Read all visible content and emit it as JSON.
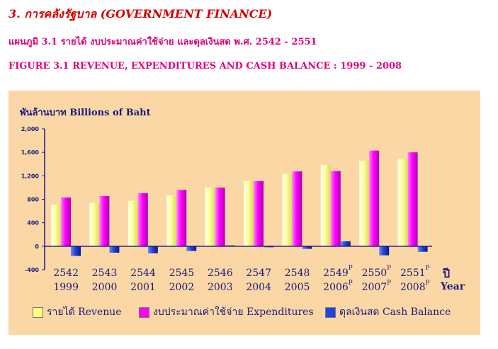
{
  "header": {
    "section_title": "3.  การคลังรัฐบาล  (GOVERNMENT FINANCE)",
    "figure_title_th": "แผนภูมิ  3.1  รายได้ งบประมาณค่าใช้จ่าย  และดุลเงินสด พ.ศ. 2542 - 2551",
    "figure_title_en": "FIGURE 3.1  REVENUE, EXPENDITURES AND CASH BALANCE :  1999 - 2008"
  },
  "chart_data": {
    "type": "bar",
    "unit_label": "พันล้านบาท  Billions of Baht",
    "categories_th": [
      "2542",
      "2543",
      "2544",
      "2545",
      "2546",
      "2547",
      "2548",
      "2549",
      "2550",
      "2551"
    ],
    "categories_en": [
      "1999",
      "2000",
      "2001",
      "2002",
      "2003",
      "2004",
      "2005",
      "2006",
      "2007",
      "2008"
    ],
    "preliminary_mark": "p",
    "preliminary_flags": [
      false,
      false,
      false,
      false,
      false,
      false,
      false,
      true,
      true,
      true
    ],
    "axis_title_th": "ปี",
    "axis_title_en": "Year",
    "ylim": [
      -400,
      2000
    ],
    "yticks": [
      -400,
      0,
      400,
      800,
      1200,
      1600,
      2000
    ],
    "ytick_labels": [
      "-400",
      "0",
      "400",
      "800",
      "1,200",
      "1,600",
      "2,000"
    ],
    "grid": false,
    "legend_position": "bottom",
    "series": [
      {
        "name": "รายได้  Revenue",
        "color": "#ffff80",
        "values": [
          710,
          740,
          775,
          870,
          1005,
          1110,
          1235,
          1385,
          1455,
          1495
        ]
      },
      {
        "name": "งบประมาณค่าใช้จ่าย  Expenditures",
        "color": "#ff00ff",
        "values": [
          830,
          855,
          905,
          960,
          1000,
          1110,
          1275,
          1280,
          1630,
          1600
        ]
      },
      {
        "name": "ดุลเงินสด  Cash Balance",
        "color": "#2244dd",
        "values": [
          -165,
          -110,
          -120,
          -80,
          15,
          0,
          -45,
          85,
          -155,
          -95
        ]
      }
    ]
  }
}
